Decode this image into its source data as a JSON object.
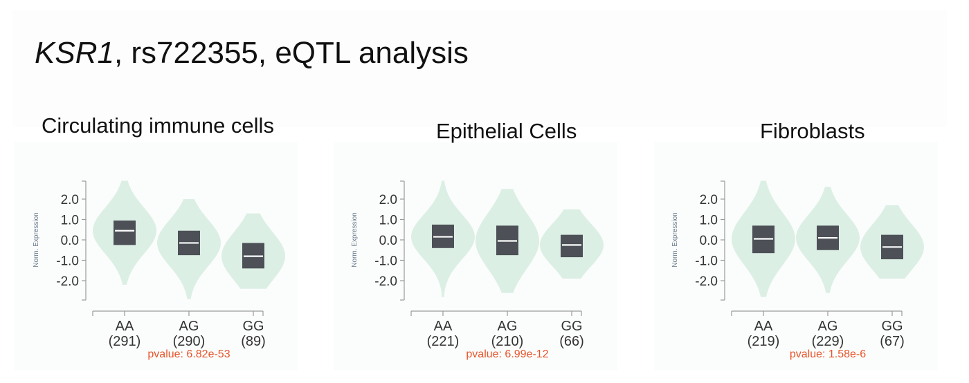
{
  "title": {
    "gene": "KSR1",
    "rest": ", rs722355, eQTL analysis"
  },
  "colors": {
    "violin": "#dcefe5",
    "box": "#4d5056",
    "median": "#ffffff",
    "axis": "#9a9a9a",
    "tick_label": "#333333",
    "ylabel": "#6a7a8c",
    "pvalue": "#e8542a"
  },
  "chart_data": [
    {
      "type": "violin",
      "title": "Circulating immune cells",
      "ylabel": "Norm. Expression",
      "yticks": [
        2.0,
        1.0,
        0.0,
        -1.0,
        -2.0
      ],
      "ytick_labels": [
        "2.0",
        "1.0",
        "0.0",
        "-1.0",
        "-2.0"
      ],
      "ylim": [
        -2.9,
        3.0
      ],
      "categories": [
        "AA",
        "AG",
        "GG"
      ],
      "counts": [
        "(291)",
        "(290)",
        "(89)"
      ],
      "pvalue": "pvalue: 6.82e-53",
      "groups": [
        {
          "name": "AA",
          "min": -2.2,
          "max": 2.9,
          "q1": -0.25,
          "median": 0.45,
          "q3": 0.95
        },
        {
          "name": "AG",
          "min": -2.9,
          "max": 2.0,
          "q1": -0.75,
          "median": -0.15,
          "q3": 0.45
        },
        {
          "name": "GG",
          "min": -2.4,
          "max": 1.3,
          "q1": -1.4,
          "median": -0.8,
          "q3": -0.15
        }
      ]
    },
    {
      "type": "violin",
      "title": "Epithelial Cells",
      "ylabel": "Norm. Expression",
      "yticks": [
        2.0,
        1.0,
        0.0,
        -1.0,
        -2.0
      ],
      "ytick_labels": [
        "2.0",
        "1.0",
        "0.0",
        "-1.0",
        "-2.0"
      ],
      "ylim": [
        -2.9,
        3.0
      ],
      "categories": [
        "AA",
        "AG",
        "GG"
      ],
      "counts": [
        "(221)",
        "(210)",
        "(66)"
      ],
      "pvalue": "pvalue: 6.99e-12",
      "groups": [
        {
          "name": "AA",
          "min": -2.8,
          "max": 2.9,
          "q1": -0.4,
          "median": 0.15,
          "q3": 0.75
        },
        {
          "name": "AG",
          "min": -2.6,
          "max": 2.5,
          "q1": -0.75,
          "median": -0.05,
          "q3": 0.7
        },
        {
          "name": "GG",
          "min": -1.9,
          "max": 1.5,
          "q1": -0.85,
          "median": -0.25,
          "q3": 0.25
        }
      ]
    },
    {
      "type": "violin",
      "title": "Fibroblasts",
      "ylabel": "Norm. Expression",
      "yticks": [
        2.0,
        1.0,
        0.0,
        -1.0,
        -2.0
      ],
      "ytick_labels": [
        "2.0",
        "1.0",
        "0.0",
        "-1.0",
        "-2.0"
      ],
      "ylim": [
        -2.9,
        3.0
      ],
      "categories": [
        "AA",
        "AG",
        "GG"
      ],
      "counts": [
        "(219)",
        "(229)",
        "(67)"
      ],
      "pvalue": "pvalue: 1.58e-6",
      "groups": [
        {
          "name": "AA",
          "min": -2.8,
          "max": 2.9,
          "q1": -0.65,
          "median": 0.05,
          "q3": 0.7
        },
        {
          "name": "AG",
          "min": -2.6,
          "max": 2.6,
          "q1": -0.5,
          "median": 0.1,
          "q3": 0.7
        },
        {
          "name": "GG",
          "min": -1.9,
          "max": 1.7,
          "q1": -0.95,
          "median": -0.35,
          "q3": 0.25
        }
      ]
    }
  ]
}
